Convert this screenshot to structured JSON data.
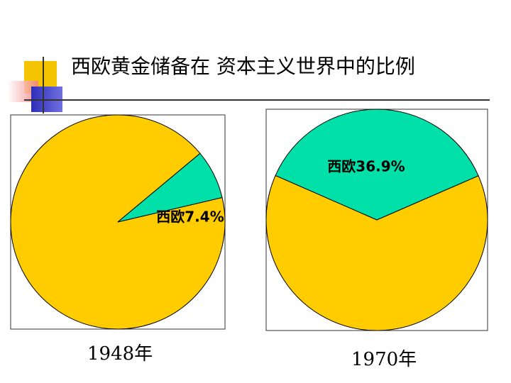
{
  "slide": {
    "title": "西欧黄金储备在 资本主义世界中的比例"
  },
  "colors": {
    "slice_other": "#FFCC00",
    "slice_west_europe": "#00E0A8",
    "deco_yellow": "#F5C400",
    "deco_pink": "#F08080",
    "deco_blue": "#3F3FC8"
  },
  "chart_data": [
    {
      "type": "pie",
      "caption": "1948年",
      "slices": [
        {
          "label": "西欧",
          "value": 7.4,
          "display": "西欧7.4%",
          "color": "#00E0A8"
        },
        {
          "label": "",
          "value": 92.6,
          "display": "",
          "color": "#FFCC00"
        }
      ]
    },
    {
      "type": "pie",
      "caption": "1970年",
      "slices": [
        {
          "label": "西欧",
          "value": 36.9,
          "display": "西欧36.9%",
          "color": "#00E0A8"
        },
        {
          "label": "",
          "value": 63.1,
          "display": "",
          "color": "#FFCC00"
        }
      ]
    }
  ]
}
